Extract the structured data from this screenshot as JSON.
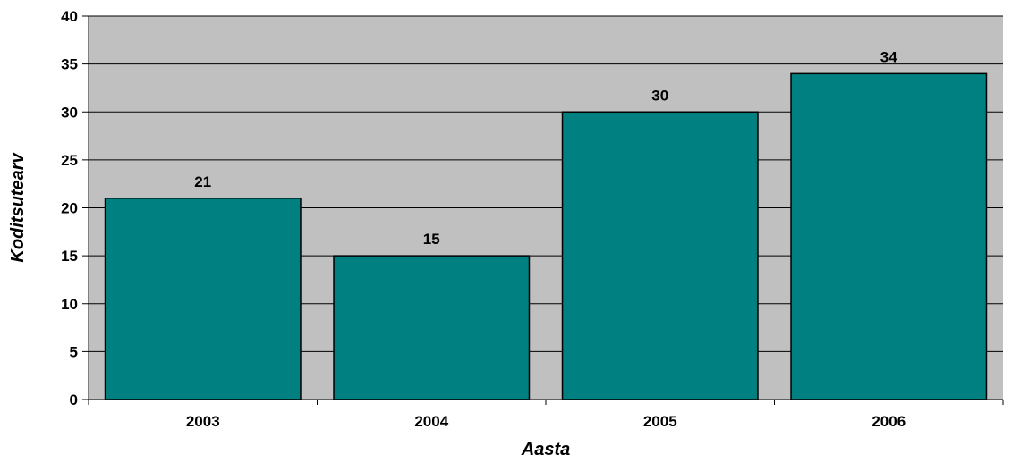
{
  "chart_data": {
    "type": "bar",
    "title": "",
    "xlabel": "Aasta",
    "ylabel": "Koditsutearv",
    "categories": [
      "2003",
      "2004",
      "2005",
      "2006"
    ],
    "values": [
      21,
      15,
      30,
      34
    ],
    "data_labels": [
      "21",
      "15",
      "30",
      "34"
    ],
    "ylim": [
      0,
      40
    ],
    "yticks": [
      "0",
      "5",
      "10",
      "15",
      "20",
      "25",
      "30",
      "35",
      "40"
    ],
    "grid": true,
    "legend": "none",
    "colors": {
      "bar": "#008080",
      "plot_background": "#c0c0c0",
      "gridline": "#000000"
    }
  }
}
